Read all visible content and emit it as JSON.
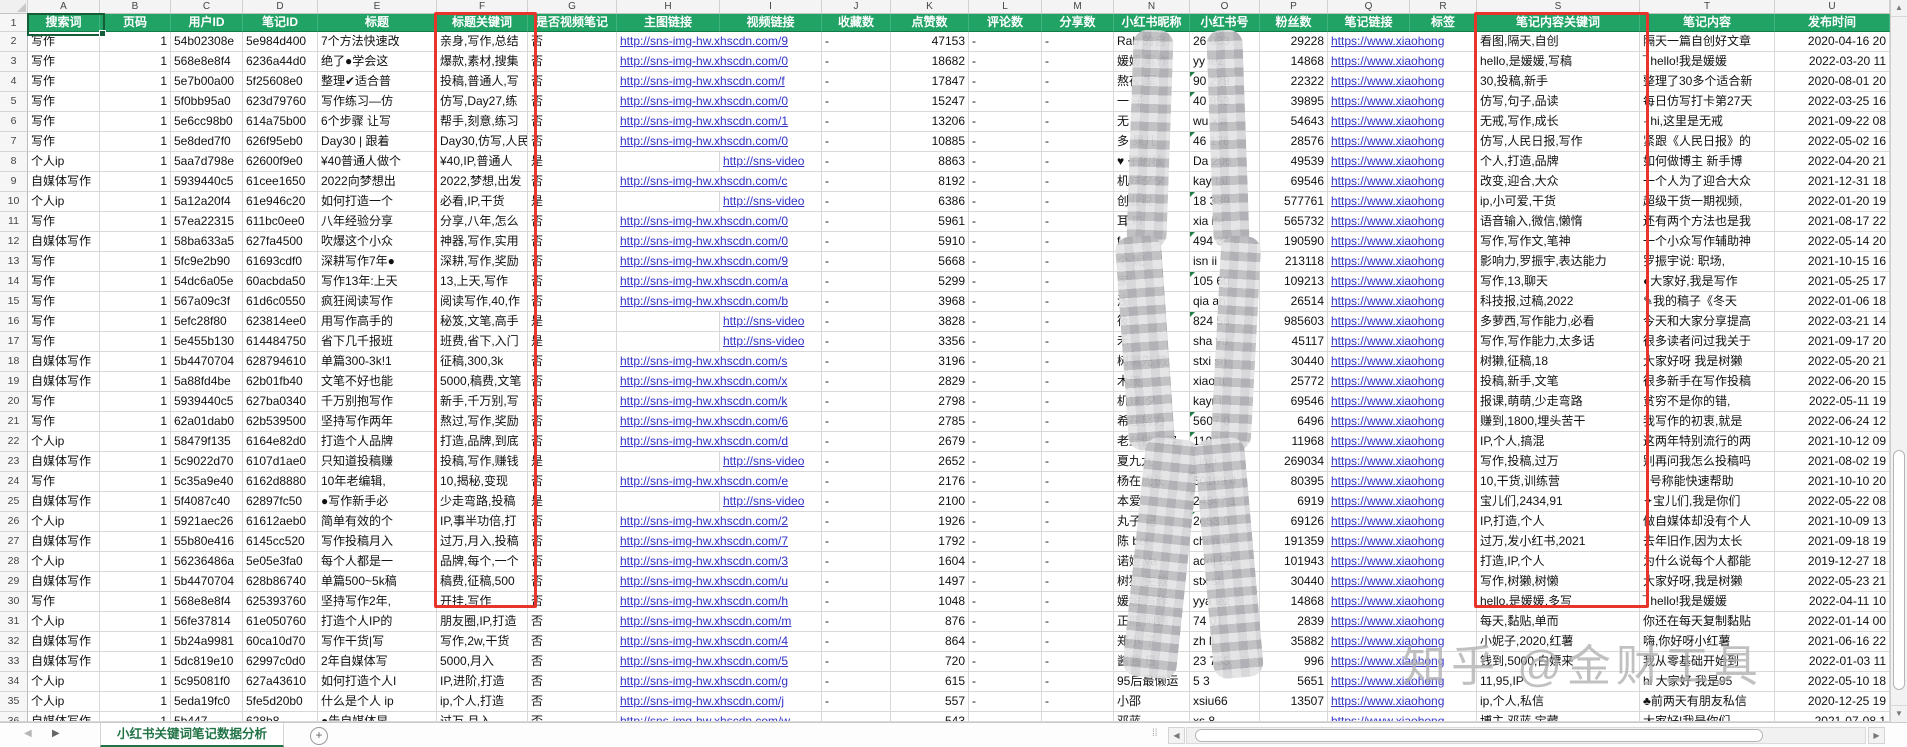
{
  "sheet_tab": "小红书关键词笔记数据分析",
  "watermark": "知乎 @金财工具",
  "column_letters": [
    "A",
    "B",
    "C",
    "D",
    "E",
    "F",
    "G",
    "H",
    "I",
    "J",
    "K",
    "L",
    "M",
    "N",
    "O",
    "P",
    "Q",
    "R",
    "S",
    "T",
    "U"
  ],
  "headers": [
    "搜索词",
    "页码",
    "用户ID",
    "笔记ID",
    "标题",
    "标题关键词",
    "是否视频笔记",
    "主图链接",
    "视频链接",
    "收藏数",
    "点赞数",
    "评论数",
    "分享数",
    "小红书昵称",
    "小红书号",
    "粉丝数",
    "笔记链接",
    "标签",
    "笔记内容关键词",
    "笔记内容",
    "发布时间"
  ],
  "green_triangle_rows": [
    4,
    5,
    7,
    10,
    12,
    14,
    16,
    21,
    22,
    24,
    25,
    26
  ],
  "colors": {
    "header_green": "#21a366",
    "highlight_red": "#e8352b",
    "link_blue": "#3232c8",
    "tab_green": "#217346",
    "selection_green": "#155c38"
  },
  "rows": [
    [
      "写作",
      "1",
      "54b02308e",
      "5e984d400",
      "7个方法快速改",
      "亲身,写作,总结",
      "否",
      "http://sns-img-hw.xhscdn.com/9",
      "",
      "-",
      "47153",
      "-",
      "-",
      "Rab 的自",
      "26 033",
      "29228",
      "https://www.xiaohong",
      "",
      "看图,隔天,自创",
      "隔天一篇自创好文章",
      "2020-04-16 20"
    ],
    [
      "写作",
      "1",
      "568e8e8f4",
      "6236a44d0",
      "绝了●学会这",
      "爆款,素材,搜集",
      "否",
      "http://sns-img-hw.xhscdn.com/0",
      "",
      "-",
      "18682",
      "-",
      "-",
      "媛媛 写作",
      "yy iez",
      "14868",
      "https://www.xiaohong",
      "",
      "hello,是媛媛,写稿",
      "‾ hello!我是媛媛",
      "2022-03-20 11"
    ],
    [
      "写作",
      "1",
      "5e7b00a00",
      "5f25608e0",
      "整理✔适合普",
      "投稿,普通人,写",
      "否",
      "http://sns-img-hw.xhscdn.com/f",
      "",
      "-",
      "17847",
      "-",
      "-",
      "熬夜 军",
      "90 279",
      "22322",
      "https://www.xiaohong",
      "",
      "30,投稿,新手",
      "整理了30多个适合新",
      "2020-08-01 20"
    ],
    [
      "写作",
      "1",
      "5f0bb95a0",
      "623d79760",
      "写作练习—仿",
      "仿写,Day27,练",
      "否",
      "http://sns-img-hw.xhscdn.com/0",
      "",
      "-",
      "15247",
      "-",
      "-",
      "一 子",
      "40 953",
      "39895",
      "https://www.xiaohong",
      "",
      "仿写,句子,品读",
      "每日仿写打卡第27天",
      "2022-03-25 16"
    ],
    [
      "写作",
      "1",
      "5e6cc98b0",
      "614a75b00",
      "6个步骤 让写",
      "帮手,刻意,练习",
      "否",
      "http://sns-img-hw.xhscdn.com/1",
      "",
      "-",
      "13206",
      "-",
      "-",
      "无",
      "wu xia",
      "54643",
      "https://www.xiaohong",
      "",
      "无戒,写作,成长",
      "· hi,这里是无戒",
      "2021-09-22 08"
    ],
    [
      "写作",
      "1",
      "5e8ded7f0",
      "626f95eb0",
      "Day30 | 跟着",
      "Day30,仿写,人民",
      "否",
      "http://sns-img-hw.xhscdn.com/0",
      "",
      "-",
      "10885",
      "-",
      "-",
      "多 果儿",
      "46 176",
      "28576",
      "https://www.xiaohong",
      "",
      "仿写,人民日报,写作",
      "紧跟《人民日报》的",
      "2022-05-02 16"
    ],
    [
      "个人ip",
      "1",
      "5aa7d798e",
      "62600f9e0",
      "¥40普通人做个",
      "¥40,IP,普通人",
      "是",
      "",
      "http://sns-video",
      "-",
      "8863",
      "-",
      "-",
      "♥ 子的核",
      "Da 206",
      "49539",
      "https://www.xiaohong",
      "",
      "个人,打造,品牌",
      "如何做博主 新手博",
      "2022-04-20 21"
    ],
    [
      "自媒体写作",
      "1",
      "5939440c5",
      "61cee1650",
      "2022向梦想出",
      "2022,梦想,出发",
      "否",
      "http://sns-img-hw.xhscdn.com/c",
      "",
      "-",
      "8192",
      "-",
      "-",
      "机妹夕夕",
      "kay tai",
      "69546",
      "https://www.xiaohong",
      "",
      "改变,迎合,大众",
      "一个人为了迎合大众",
      "2021-12-31 18"
    ],
    [
      "个人ip",
      "1",
      "5a12a20f4",
      "61e946c20",
      "如何打造一个",
      "必看,IP,干货",
      "是",
      "",
      "http://sns-video",
      "-",
      "6386",
      "-",
      "-",
      "创业说",
      "18 339",
      "577761",
      "https://www.xiaohong",
      "",
      "ip,小可爱,干货",
      "超级干货一期视频,",
      "2022-01-20 19"
    ],
    [
      "写作",
      "1",
      "57ea22315",
      "611bc0ee0",
      "八年经验分享",
      "分享,八年,怎么",
      "否",
      "http://sns-img-hw.xhscdn.com/0",
      "",
      "-",
      "5961",
      "-",
      "-",
      "耳 Fi",
      "xia ife",
      "565732",
      "https://www.xiaohong",
      "",
      "语音输入,微信,懒惰",
      "还有两个方法也是我",
      "2021-08-17 22"
    ],
    [
      "自媒体写作",
      "1",
      "58ba633a5",
      "627fa4500",
      "吹爆这个小众",
      "神器,写作,实用",
      "否",
      "http://sns-img-hw.xhscdn.com/0",
      "",
      "-",
      "5910",
      "-",
      "-",
      "f",
      "494 343",
      "190590",
      "https://www.xiaohong",
      "",
      "写作,写作文,笔神",
      "一个小众写作辅助神",
      "2022-05-14 20"
    ],
    [
      "写作",
      "1",
      "5fc9e2b90",
      "61693cdf0",
      "深耕写作7年●",
      "深耕,写作,奖励",
      "否",
      "http://sns-img-hw.xhscdn.com/9",
      "",
      "-",
      "5668",
      "-",
      "-",
      "个 妮",
      "isn ii",
      "213118",
      "https://www.xiaohong",
      "",
      "影响力,罗振宇,表达能力",
      "罗振宇说: 职场,",
      "2021-10-15 16"
    ],
    [
      "写作",
      "1",
      "54dc6a05e",
      "60acbda50",
      "写作13年:上天",
      "13,上天,写作",
      "否",
      "http://sns-img-hw.xhscdn.com/a",
      "",
      "-",
      "5299",
      "-",
      "-",
      "家",
      "105 60",
      "109213",
      "https://www.xiaohong",
      "",
      "写作,13,聊天",
      "●大家好,我是写作",
      "2021-05-25 17"
    ],
    [
      "写作",
      "1",
      "567a09c3f",
      "61d6c0550",
      "疯狂阅读写作",
      "阅读写作,40,作",
      "否",
      "http://sns-img-hw.xhscdn.com/b",
      "",
      "-",
      "3968",
      "-",
      "-",
      "浅",
      "qia an",
      "26514",
      "https://www.xiaohong",
      "",
      "科技报,过稿,2022",
      "✎我的稿子《冬天",
      "2022-01-06 18"
    ],
    [
      "写作",
      "1",
      "5efc28f80",
      "623814ee0",
      "用写作高手的",
      "秘笈,文笔,高手",
      "是",
      "",
      "http://sns-video",
      "-",
      "3828",
      "-",
      "-",
      "筱",
      "824 56",
      "985603",
      "https://www.xiaohong",
      "",
      "多萝西,写作能力,必看",
      "今天和大家分享提高",
      "2022-03-21 14"
    ],
    [
      "写作",
      "1",
      "5e455b130",
      "614484750",
      "省下几千报班",
      "班费,省下,入门",
      "是",
      "",
      "http://sns-video",
      "-",
      "3356",
      "-",
      "-",
      "禾",
      "sha yu",
      "45117",
      "https://www.xiaohong",
      "",
      "写作,写作能力,太多话",
      "很多读者问过我关于",
      "2021-09-17 20"
    ],
    [
      "自媒体写作",
      "1",
      "5b4470704",
      "628794610",
      "单篇300-3k!1",
      "征稿,300,3k",
      "否",
      "http://sns-img-hw.xhscdn.com/s",
      "",
      "-",
      "3196",
      "-",
      "-",
      "树獭先 教",
      "stxi sh",
      "30440",
      "https://www.xiaohong",
      "",
      "树獭,征稿,18",
      "大家好呀 我是树獭",
      "2022-05-20 21"
    ],
    [
      "自媒体写作",
      "1",
      "5a88fd4be",
      "62b01fb40",
      "文笔不好也能",
      "5000,稿费,文笔",
      "否",
      "http://sns-img-hw.xhscdn.com/x",
      "",
      "-",
      "2829",
      "-",
      "-",
      "木羡",
      "xiao a",
      "25772",
      "https://www.xiaohong",
      "",
      "投稿,新手,文笔",
      "很多新手在写作投稿",
      "2022-06-20 15"
    ],
    [
      "写作",
      "1",
      "5939440c5",
      "627ba0340",
      "千万别抱写作",
      "新手,千万别,写",
      "否",
      "http://sns-img-hw.xhscdn.com/k",
      "",
      "-",
      "2798",
      "-",
      "-",
      "机妹 夕",
      "kayr i",
      "69546",
      "https://www.xiaohong",
      "",
      "报课,萌萌,少走弯路",
      "贫穷不是你的错,",
      "2022-05-11 19"
    ],
    [
      "写作",
      "1",
      "62a01dab0",
      "62b539500",
      "坚持写作两年",
      "熬过,写作,奖励",
      "否",
      "http://sns-img-hw.xhscdn.com/6",
      "",
      "-",
      "2785",
      "-",
      "-",
      "希在努力",
      "5607 0",
      "6496",
      "https://www.xiaohong",
      "",
      "赚到,1800,埋头苦干",
      "我写作的初衷,就是",
      "2022-06-24 12"
    ],
    [
      "个人ip",
      "1",
      "58479f135",
      "6164e82d0",
      "打造个人品牌",
      "打造,品牌,到底",
      "否",
      "http://sns-img-hw.xhscdn.com/d",
      "",
      "-",
      "2679",
      "-",
      "-",
      "老丝做内容",
      "1107 4",
      "11968",
      "https://www.xiaohong",
      "",
      "IP,个人,搞混",
      "这两年特别流行的两",
      "2021-10-12 09"
    ],
    [
      "自媒体写作",
      "1",
      "5c9022d70",
      "6107d1ae0",
      "只知道投稿赚",
      "投稿,写作,赚钱",
      "是",
      "",
      "http://sns-video",
      "-",
      "2652",
      "-",
      "-",
      "夏九九",
      "xiaj i",
      "269034",
      "https://www.xiaohong",
      "",
      "写作,投稿,过万",
      "别再问我怎么投稿吗",
      "2021-08-02 19"
    ],
    [
      "写作",
      "1",
      "5c35a9e40",
      "6162d8880",
      "10年老编辑,",
      "10,揭秘,变现",
      "否",
      "http://sns-img-hw.xhscdn.com/e",
      "",
      "-",
      "2176",
      "-",
      "-",
      "杨在成长",
      "50169 4",
      "80395",
      "https://www.xiaohong",
      "",
      "10,干货,训练营",
      "  号称能快速帮助",
      "2021-10-10 20"
    ],
    [
      "自媒体写作",
      "1",
      "5f4087c40",
      "62897fc50",
      "●写作新手必",
      "少走弯路,投稿",
      "是",
      "",
      "http://sns-video",
      "-",
      "2100",
      "-",
      "-",
      "本爱",
      "24347 1",
      "6919",
      "https://www.xiaohong",
      "",
      "宝儿们,2434,91",
      "✦宝儿们,我是你们",
      "2022-05-22 08"
    ],
    [
      "个人ip",
      "1",
      "5921aec26",
      "61612aeb0",
      "简单有效的个",
      "IP,事半功倍,打",
      "否",
      "http://sns-img-hw.xhscdn.com/2",
      "",
      "-",
      "1926",
      "-",
      "-",
      "丸子 记",
      "2653 9",
      "69126",
      "https://www.xiaohong",
      "",
      "IP,打造,个人",
      "做自媒体却没有个人",
      "2021-10-09 13"
    ],
    [
      "自媒体写作",
      "1",
      "55b80e416",
      "6145cc520",
      "写作投稿月入",
      "过万,月入,投稿",
      "否",
      "http://sns-img-hw.xhscdn.com/7",
      "",
      "-",
      "1792",
      "-",
      "-",
      "陈 ber",
      "chen u",
      "191359",
      "https://www.xiaohong",
      "",
      "过万,发小红书,2021",
      "去年旧作,因为太长",
      "2021-09-18 19"
    ],
    [
      "个人ip",
      "1",
      "56236486a",
      "5e05e3fa0",
      "每个人都是一",
      "品牌,每个,一个",
      "否",
      "http://sns-img-hw.xhscdn.com/3",
      "",
      "-",
      "1604",
      "-",
      "-",
      "诺娅 va",
      "addj 59",
      "101943",
      "https://www.xiaohong",
      "",
      "打造,IP,个人",
      "为什么说每个人都能",
      "2019-12-27 18"
    ],
    [
      "自媒体写作",
      "1",
      "5b4470704",
      "628b86740",
      "单篇500~5k稿",
      "稿费,征稿,500",
      "否",
      "http://sns-img-hw.xhscdn.com/u",
      "",
      "-",
      "1497",
      "-",
      "-",
      "树獭 生教",
      "stx sh",
      "30440",
      "https://www.xiaohong",
      "",
      "写作,树獭,树懒",
      "大家好呀,我是树獭",
      "2022-05-23 21"
    ],
    [
      "写作",
      "1",
      "568e8e8f4",
      "625393760",
      "坚持写作2年,",
      "开挂,写作",
      "否",
      "http://sns-img-hw.xhscdn.com/h",
      "",
      "-",
      "1048",
      "-",
      "-",
      "媛媛 写作",
      "yya iez",
      "14868",
      "https://www.xiaohong",
      "",
      "hello,是媛媛,多写",
      "‾ hello!我是媛媛",
      "2022-04-11 10"
    ],
    [
      "个人ip",
      "1",
      "56fe37814",
      "61e050760",
      "打造个人IP的",
      "朋友圈,IP,打造",
      "否",
      "http://sns-img-hw.xhscdn.com/m",
      "",
      "-",
      "876",
      "-",
      "-",
      "正能 阿姨",
      "74 01",
      "2839",
      "https://www.xiaohong",
      "",
      "每天,黏贴,单而",
      "你还在每天复制黏贴",
      "2022-01-14 00"
    ],
    [
      "自媒体写作",
      "1",
      "5b24a9981",
      "60ca10d70",
      "写作干货|写",
      "写作,2w,干货",
      "否",
      "http://sns-img-hw.xhscdn.com/4",
      "",
      "-",
      "864",
      "-",
      "-",
      "郑小 子",
      "zh ll",
      "35882",
      "https://www.xiaohong",
      "",
      "小妮子,2020,红薯",
      "嗨,你好呀小红薯",
      "2021-06-16 22"
    ],
    [
      "自媒体写作",
      "1",
      "5dc819e10",
      "62997c0d0",
      "2年自媒体写",
      "5000,月入",
      "否",
      "http://sns-img-hw.xhscdn.com/5",
      "",
      "-",
      "720",
      "-",
      "-",
      "酱酱 日",
      "23 755",
      "996",
      "https://www.xiaohong",
      "",
      "钱到,5000,白嫖来",
      "我从零基础开始到",
      "2022-01-03 11"
    ],
    [
      "个人ip",
      "1",
      "5c95081f0",
      "627a43610",
      "如何打造个人I",
      "IP,进阶,打造",
      "否",
      "http://sns-img-hw.xhscdn.com/g",
      "",
      "-",
      "615",
      "-",
      "-",
      "95后最懒运",
      "5 3",
      "5651",
      "https://www.xiaohong",
      "",
      "11,95,IP",
      "hi 大家好 我是95",
      "2022-05-10 18"
    ],
    [
      "个人ip",
      "1",
      "5eda19fc0",
      "5fe5d20b0",
      "什么是个人 ip",
      "ip,个人,打造",
      "否",
      "http://sns-img-hw.xhscdn.com/j",
      "",
      "-",
      "557",
      "-",
      "-",
      "小邵",
      "xsiu66",
      "13507",
      "https://www.xiaohong",
      "",
      "ip,个人,私信",
      "♣前两天有朋友私信",
      "2020-12-25 19"
    ],
    [
      "自媒体写作",
      "1",
      "5b447",
      "628b8",
      "●告自媒体早",
      "过万,月入",
      "否",
      "http://sns-img-hw.xhscdn.com/w",
      "",
      "-",
      "543",
      "-",
      "-",
      "邓蓝",
      "xs 8",
      "",
      "https://www.xiaohong",
      "",
      "博主,邓蓝,宝藏",
      "大家好!我是你们",
      "2021-07-08 1"
    ]
  ]
}
